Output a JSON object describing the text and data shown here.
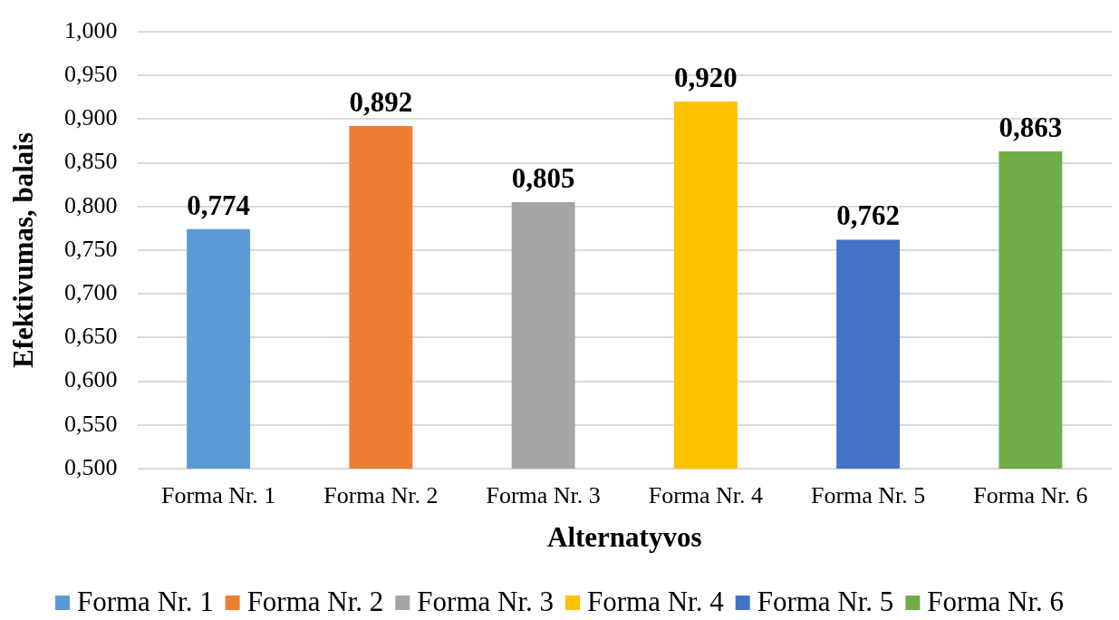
{
  "chart_data": {
    "type": "bar",
    "xlabel": "Alternatyvos",
    "ylabel": "Efektivumas, balais",
    "categories": [
      "Forma Nr. 1",
      "Forma Nr. 2",
      "Forma Nr. 3",
      "Forma Nr. 4",
      "Forma Nr. 5",
      "Forma Nr. 6"
    ],
    "series": [
      {
        "name": "Forma Nr. 1",
        "color": "#5b9bd5",
        "values": [
          0.774,
          null,
          null,
          null,
          null,
          null
        ],
        "value_labels": [
          "0,774",
          null,
          null,
          null,
          null,
          null
        ]
      },
      {
        "name": "Forma Nr. 2",
        "color": "#ed7d31",
        "values": [
          null,
          0.892,
          null,
          null,
          null,
          null
        ],
        "value_labels": [
          null,
          "0,892",
          null,
          null,
          null,
          null
        ]
      },
      {
        "name": "Forma Nr. 3",
        "color": "#a5a5a5",
        "values": [
          null,
          null,
          0.805,
          null,
          null,
          null
        ],
        "value_labels": [
          null,
          null,
          "0,805",
          null,
          null,
          null
        ]
      },
      {
        "name": "Forma Nr. 4",
        "color": "#ffc000",
        "values": [
          null,
          null,
          null,
          0.92,
          null,
          null
        ],
        "value_labels": [
          null,
          null,
          null,
          "0,920",
          null,
          null
        ]
      },
      {
        "name": "Forma Nr. 5",
        "color": "#4472c4",
        "values": [
          null,
          null,
          null,
          null,
          0.762,
          null
        ],
        "value_labels": [
          null,
          null,
          null,
          null,
          "0,762",
          null
        ]
      },
      {
        "name": "Forma Nr. 6",
        "color": "#70ad47",
        "values": [
          null,
          null,
          null,
          null,
          null,
          0.863
        ],
        "value_labels": [
          null,
          null,
          null,
          null,
          null,
          "0,863"
        ]
      }
    ],
    "ylim": [
      0.5,
      1.0
    ],
    "yticks": [
      {
        "value": 0.5,
        "label": "0,500"
      },
      {
        "value": 0.55,
        "label": "0,550"
      },
      {
        "value": 0.6,
        "label": "0,600"
      },
      {
        "value": 0.65,
        "label": "0,650"
      },
      {
        "value": 0.7,
        "label": "0,700"
      },
      {
        "value": 0.75,
        "label": "0,750"
      },
      {
        "value": 0.8,
        "label": "0,800"
      },
      {
        "value": 0.85,
        "label": "0,850"
      },
      {
        "value": 0.9,
        "label": "0,900"
      },
      {
        "value": 0.95,
        "label": "0,950"
      },
      {
        "value": 1.0,
        "label": "1,000"
      }
    ],
    "grid": "y",
    "legend": "bottom"
  }
}
